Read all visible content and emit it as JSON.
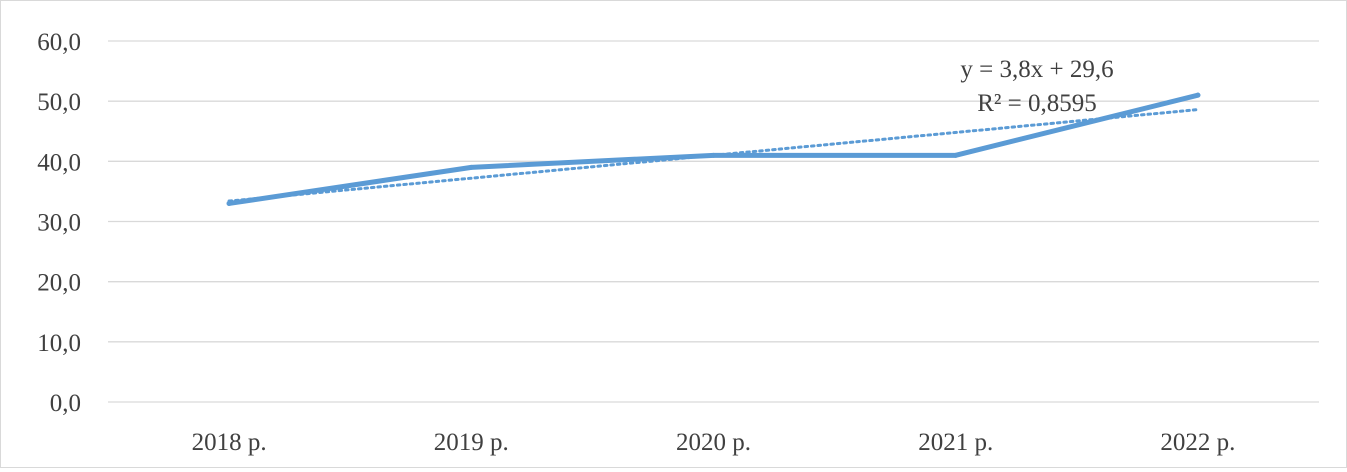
{
  "chart_data": {
    "type": "line",
    "categories": [
      "2018 р.",
      "2019 р.",
      "2020 р.",
      "2021 р.",
      "2022 р."
    ],
    "series": [
      {
        "values": [
          33.0,
          39.0,
          41.0,
          41.0,
          51.0
        ],
        "color": "#5b9bd5"
      }
    ],
    "trendline": {
      "type": "linear",
      "slope": 3.8,
      "intercept": 29.6,
      "equation": "y = 3,8x + 29,6",
      "r_squared": "R² = 0,8595",
      "style": "dotted",
      "color": "#5b9bd5"
    },
    "y_ticks": [
      "0,0",
      "10,0",
      "20,0",
      "30,0",
      "40,0",
      "50,0",
      "60,0"
    ],
    "ylim": [
      0,
      60
    ],
    "grid": true,
    "legend": "none",
    "title": "",
    "xlabel": "",
    "ylabel": ""
  }
}
